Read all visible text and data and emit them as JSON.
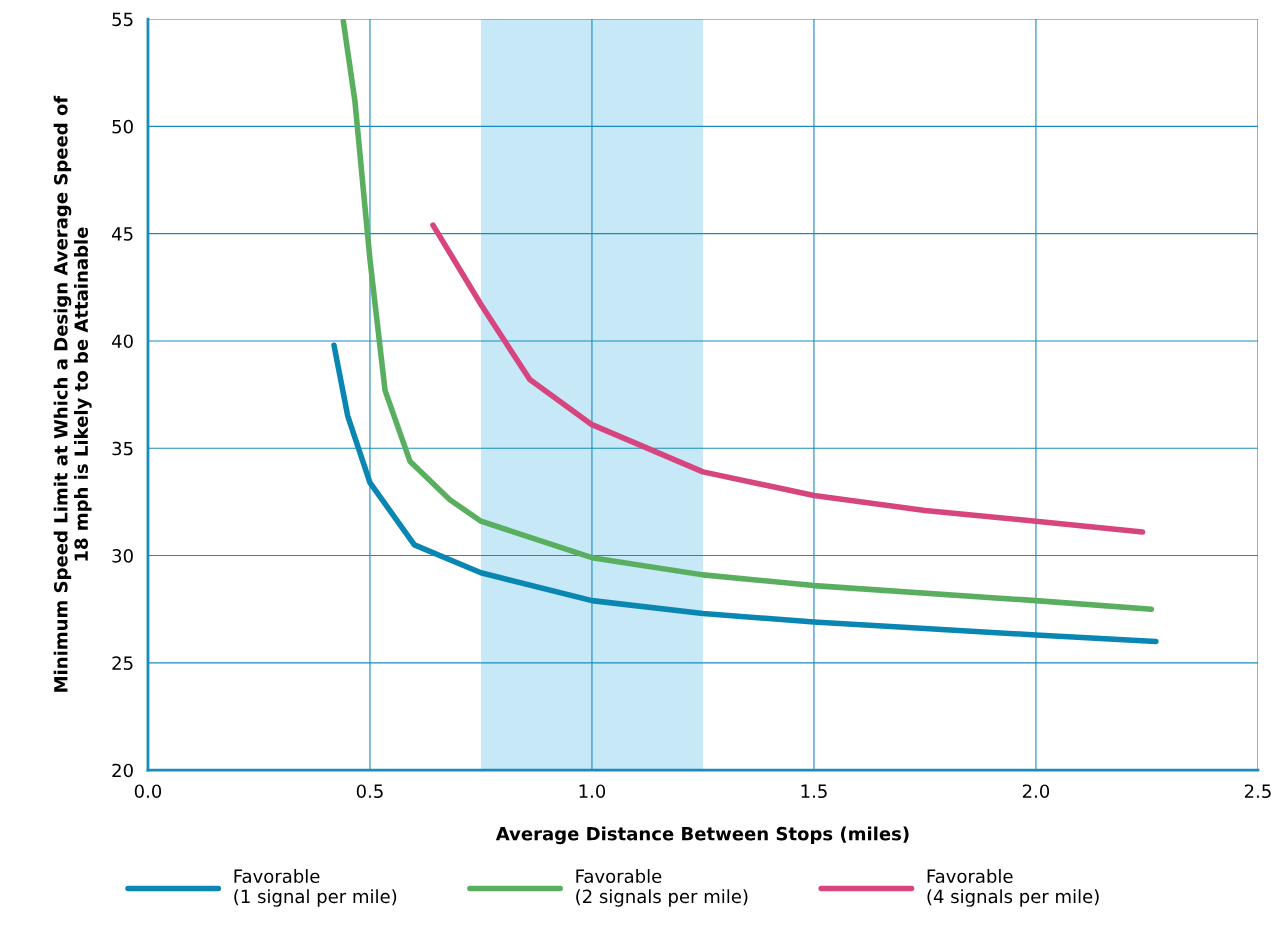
{
  "chart_data": {
    "type": "line",
    "xlabel": "Average Distance Between Stops (miles)",
    "ylabel": "Minimum Speed Limit at Which a Design Average Speed of\n18 mph is Likely to be Attainable",
    "xlim": [
      0,
      2.5
    ],
    "ylim": [
      20,
      55
    ],
    "xticks": [
      {
        "value": 0,
        "label": "0.0"
      },
      {
        "value": 0.5,
        "label": "0.5"
      },
      {
        "value": 1,
        "label": "1.0"
      },
      {
        "value": 1.5,
        "label": "1.5"
      },
      {
        "value": 2,
        "label": "2.0"
      },
      {
        "value": 2.5,
        "label": "2.5"
      }
    ],
    "yticks": [
      20,
      25,
      30,
      35,
      40,
      45,
      50,
      55
    ],
    "grid": true,
    "legend": "bottom",
    "line_style": "solid",
    "marker": "none",
    "bands": [
      {
        "axis": "x",
        "from": 0.75,
        "to": 1.25,
        "color": "#c6e8f7"
      }
    ],
    "series": [
      {
        "name": "Favorable\n(1 signal per mile)",
        "color": "#0a86b3",
        "x": [
          0.419,
          0.45,
          0.5,
          0.6,
          0.75,
          1.0,
          1.25,
          1.5,
          1.75,
          2.0,
          2.27
        ],
        "values": [
          39.8,
          36.5,
          33.4,
          30.5,
          29.2,
          27.9,
          27.3,
          26.9,
          26.6,
          26.3,
          26.0
        ]
      },
      {
        "name": "Favorable\n(2 signals per mile)",
        "color": "#5aae5f",
        "x": [
          0.44,
          0.466,
          0.5,
          0.534,
          0.59,
          0.68,
          0.75,
          1.0,
          1.25,
          1.5,
          2.0,
          2.26
        ],
        "values": [
          54.9,
          51.2,
          43.8,
          37.7,
          34.4,
          32.6,
          31.6,
          29.9,
          29.1,
          28.6,
          27.9,
          27.5
        ]
      },
      {
        "name": "Favorable\n(4 signals per mile)",
        "color": "#d6457e",
        "x": [
          0.642,
          0.75,
          0.86,
          1.0,
          1.25,
          1.5,
          1.75,
          2.0,
          2.24
        ],
        "values": [
          45.4,
          41.7,
          38.2,
          36.1,
          33.9,
          32.8,
          32.1,
          31.6,
          31.1
        ]
      }
    ]
  }
}
